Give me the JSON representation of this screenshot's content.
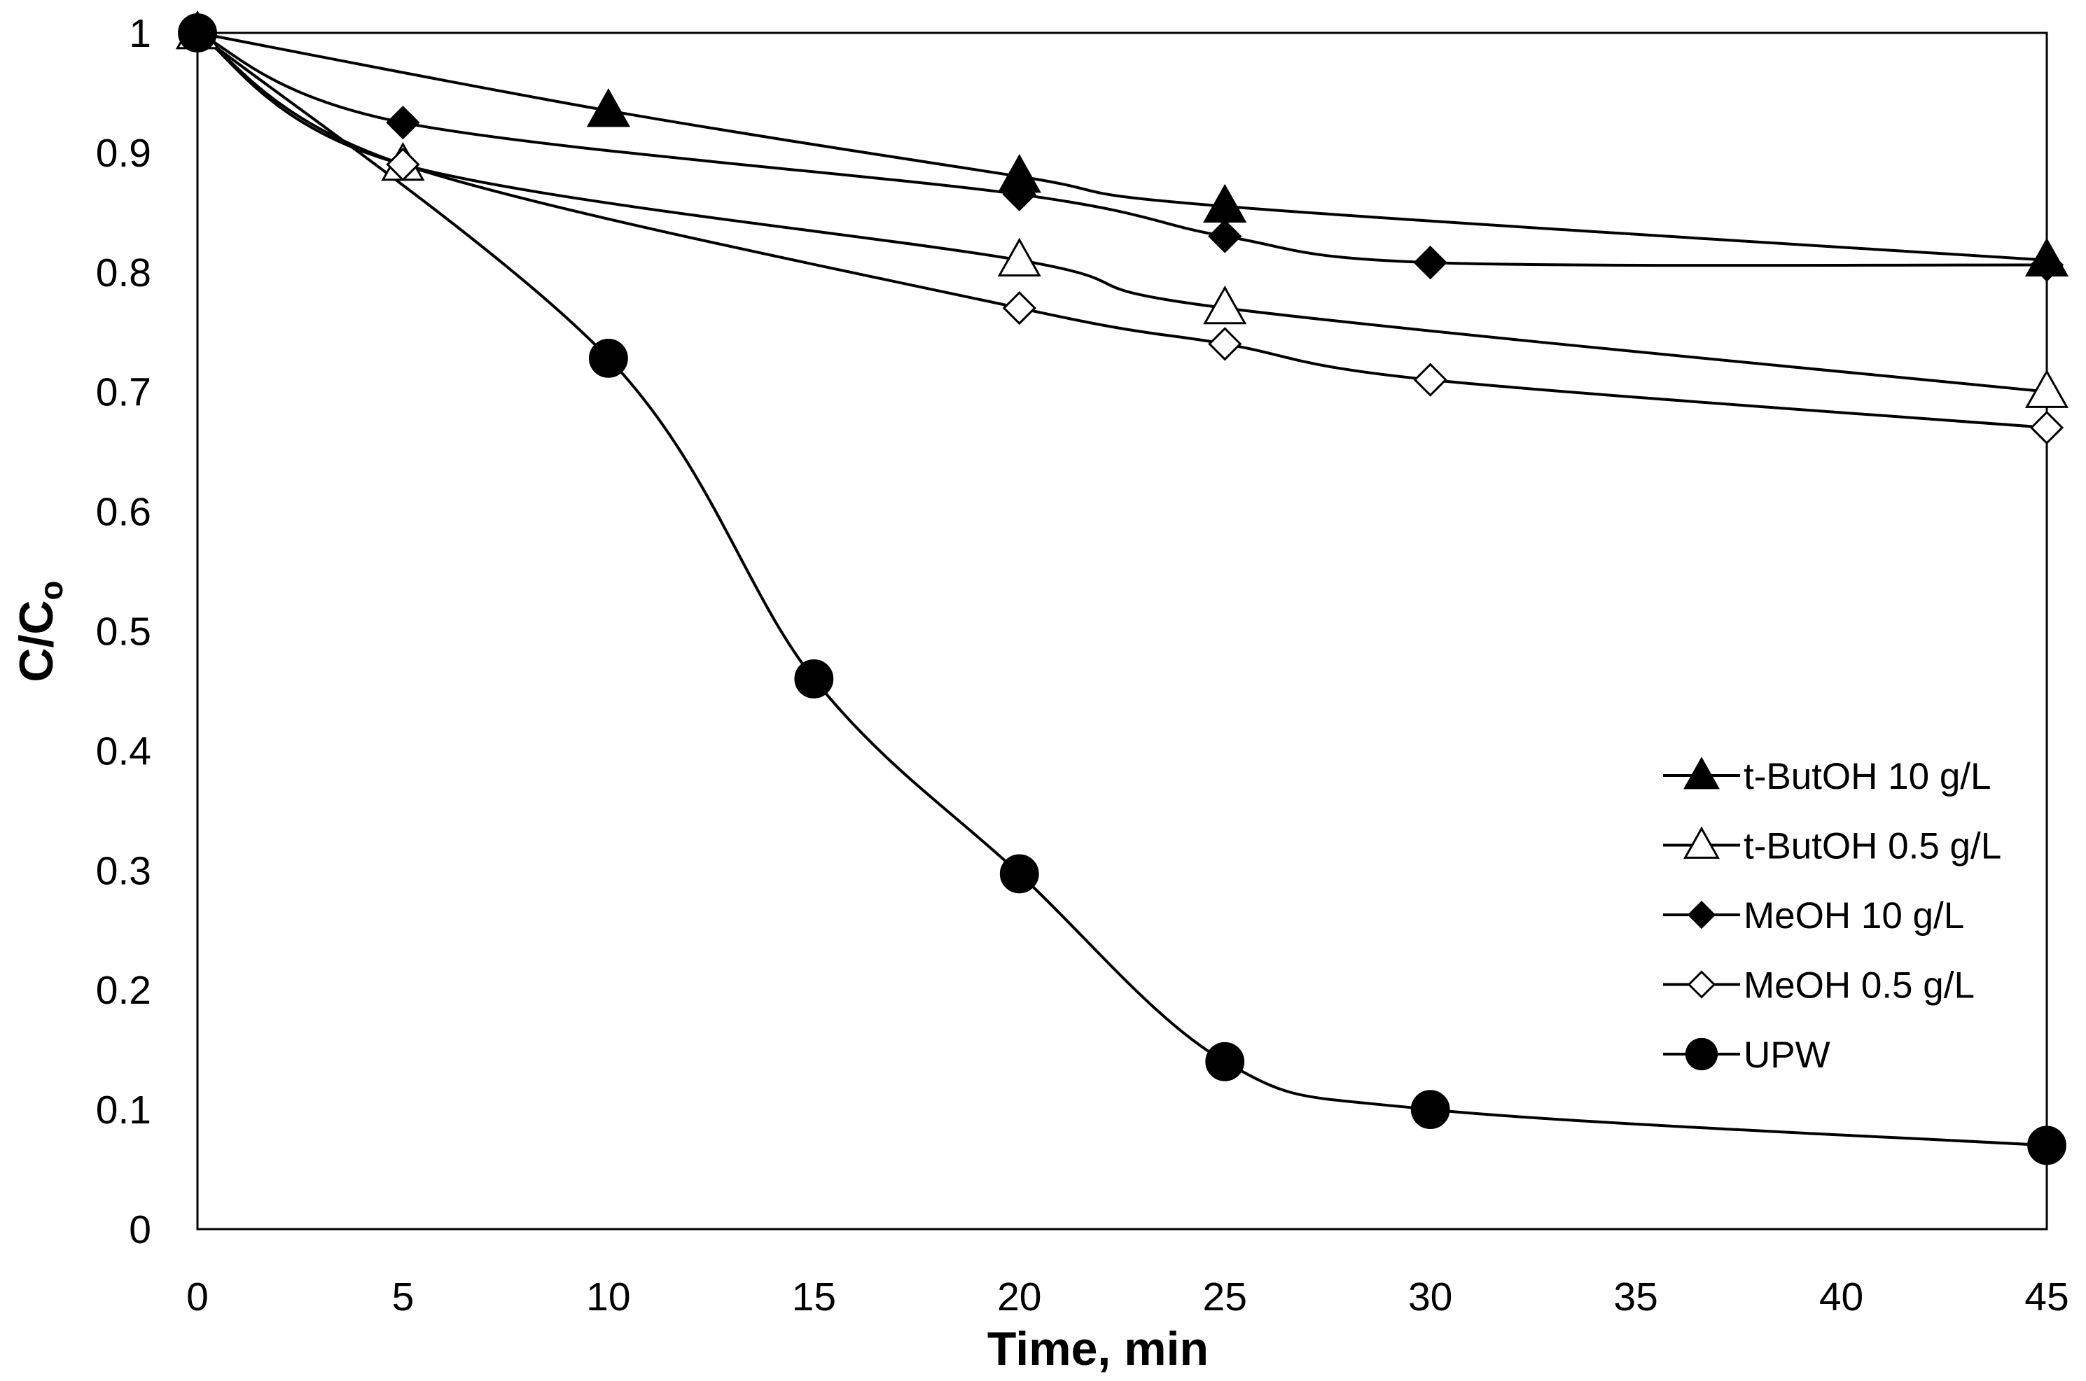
{
  "chart_data": {
    "type": "line",
    "title": "",
    "xlabel": "Time, min",
    "ylabel_main": "C/C",
    "ylabel_sub": "o",
    "xlim": [
      0,
      45
    ],
    "ylim": [
      0,
      1
    ],
    "xticks": [
      0,
      5,
      10,
      15,
      20,
      25,
      30,
      35,
      40,
      45
    ],
    "yticks": [
      0,
      0.1,
      0.2,
      0.3,
      0.4,
      0.5,
      0.6,
      0.7,
      0.8,
      0.9,
      1
    ],
    "ytick_labels": [
      "0",
      "0.1",
      "0.2",
      "0.3",
      "0.4",
      "0.5",
      "0.6",
      "0.7",
      "0.8",
      "0.9",
      "1"
    ],
    "grid": false,
    "legend_position": "right",
    "series": [
      {
        "name": "t-ButOH 10 g/L",
        "marker": "triangle",
        "filled": true,
        "x": [
          0,
          10,
          20,
          25,
          45
        ],
        "y": [
          1.0,
          0.935,
          0.88,
          0.855,
          0.81
        ]
      },
      {
        "name": "t-ButOH 0.5 g/L",
        "marker": "triangle",
        "filled": false,
        "x": [
          0,
          5,
          20,
          25,
          45
        ],
        "y": [
          1.0,
          0.89,
          0.81,
          0.77,
          0.7
        ]
      },
      {
        "name": "MeOH 10 g/L",
        "marker": "diamond",
        "filled": true,
        "x": [
          0,
          5,
          20,
          25,
          30,
          45
        ],
        "y": [
          1.0,
          0.925,
          0.865,
          0.83,
          0.808,
          0.806
        ]
      },
      {
        "name": "MeOH 0.5 g/L",
        "marker": "diamond",
        "filled": false,
        "x": [
          0,
          5,
          20,
          25,
          30,
          45
        ],
        "y": [
          1.0,
          0.89,
          0.77,
          0.74,
          0.71,
          0.67
        ]
      },
      {
        "name": "UPW",
        "marker": "circle",
        "filled": true,
        "x": [
          0,
          10,
          15,
          20,
          25,
          30,
          45
        ],
        "y": [
          1.0,
          0.728,
          0.46,
          0.297,
          0.14,
          0.1,
          0.07
        ]
      }
    ]
  },
  "colors": {
    "line": "#000000",
    "background": "#ffffff"
  }
}
